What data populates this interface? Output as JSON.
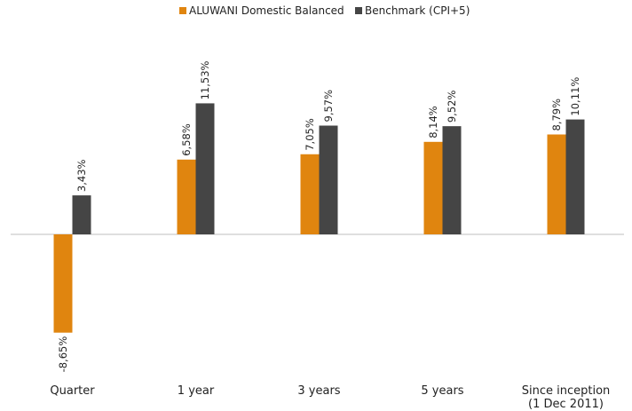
{
  "chart_data": {
    "type": "bar",
    "title": "",
    "xlabel": "",
    "ylabel": "",
    "categories": [
      [
        "Quarter"
      ],
      [
        "1 year"
      ],
      [
        "3 years"
      ],
      [
        "5 years"
      ],
      [
        "Since inception",
        "(1 Dec 2011)"
      ]
    ],
    "series": [
      {
        "name": "ALUWANI Domestic Balanced",
        "color": "#e0850f",
        "values": [
          -8.65,
          6.58,
          7.05,
          8.14,
          8.79
        ],
        "labels": [
          "-8,65%",
          "6,58%",
          "7,05%",
          "8,14%",
          "8,79%"
        ]
      },
      {
        "name": "Benchmark (CPI+5)",
        "color": "#454545",
        "values": [
          3.43,
          11.53,
          9.57,
          9.52,
          10.11
        ],
        "labels": [
          "3,43%",
          "11,53%",
          "9,57%",
          "9,52%",
          "10,11%"
        ]
      }
    ],
    "ylim": [
      -10,
      12
    ],
    "grid": false,
    "legend_position": "top-center",
    "zero_line_color": "#bfbfbf"
  }
}
